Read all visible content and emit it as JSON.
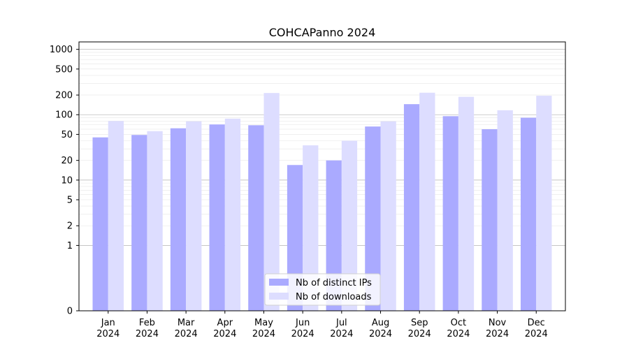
{
  "chart_data": {
    "type": "bar",
    "title": "COHCAPanno 2024",
    "xlabel": "",
    "ylabel": "",
    "yscale": "symlog",
    "ylim": [
      0,
      1300
    ],
    "yticks": [
      0,
      1,
      2,
      5,
      10,
      20,
      50,
      100,
      200,
      500,
      1000
    ],
    "grid": "horizontal",
    "legend_position": "bottom-center",
    "categories": [
      "Jan\n2024",
      "Feb\n2024",
      "Mar\n2024",
      "Apr\n2024",
      "May\n2024",
      "Jun\n2024",
      "Jul\n2024",
      "Aug\n2024",
      "Sep\n2024",
      "Oct\n2024",
      "Nov\n2024",
      "Dec\n2024"
    ],
    "series": [
      {
        "name": "Nb of distinct IPs",
        "color": "#aaaaff",
        "values": [
          45,
          49,
          62,
          71,
          69,
          17,
          20,
          66,
          145,
          95,
          60,
          90
        ]
      },
      {
        "name": "Nb of downloads",
        "color": "#ddddff",
        "values": [
          80,
          56,
          79,
          87,
          215,
          34,
          40,
          79,
          217,
          188,
          117,
          195
        ]
      }
    ]
  }
}
